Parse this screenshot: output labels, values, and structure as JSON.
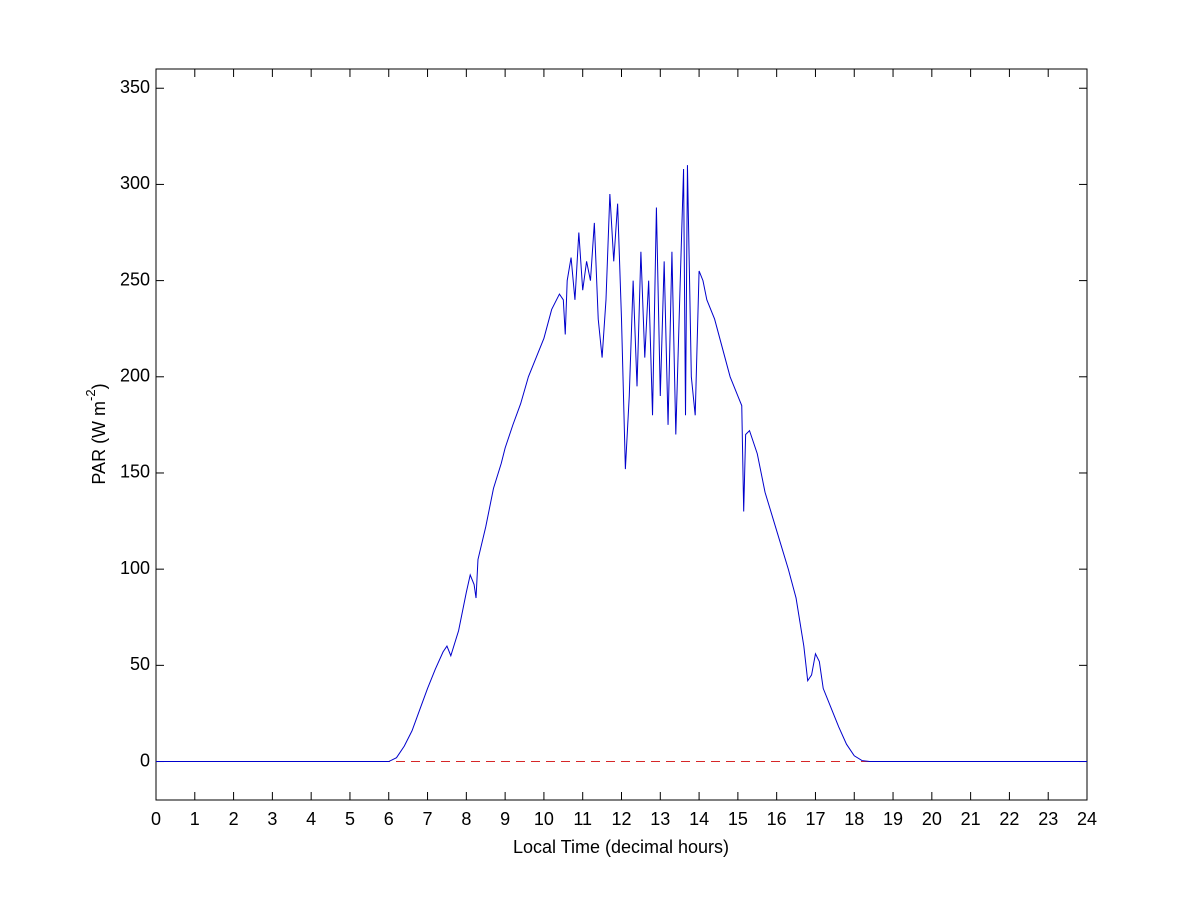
{
  "chart_data": {
    "type": "line",
    "xlabel": "Local Time (decimal hours)",
    "ylabel": [
      "PAR (W m",
      "-2",
      ")"
    ],
    "xlim": [
      0,
      24
    ],
    "ylim": [
      -20,
      360
    ],
    "xticks": [
      0,
      1,
      2,
      3,
      4,
      5,
      6,
      7,
      8,
      9,
      10,
      11,
      12,
      13,
      14,
      15,
      16,
      17,
      18,
      19,
      20,
      21,
      22,
      23,
      24
    ],
    "yticks": [
      0,
      50,
      100,
      150,
      200,
      250,
      300,
      350
    ],
    "grid": false,
    "series": [
      {
        "color": "#0000cc",
        "style": "solid",
        "x": [
          0,
          6,
          6.2,
          6.4,
          6.6,
          6.8,
          7.0,
          7.2,
          7.4,
          7.5,
          7.6,
          7.8,
          8.0,
          8.1,
          8.2,
          8.25,
          8.3,
          8.5,
          8.7,
          8.9,
          9.0,
          9.2,
          9.4,
          9.6,
          9.8,
          10.0,
          10.2,
          10.4,
          10.5,
          10.55,
          10.6,
          10.7,
          10.8,
          10.9,
          11.0,
          11.1,
          11.2,
          11.3,
          11.4,
          11.5,
          11.6,
          11.7,
          11.8,
          11.9,
          12.0,
          12.1,
          12.2,
          12.3,
          12.4,
          12.5,
          12.6,
          12.7,
          12.8,
          12.9,
          13.0,
          13.1,
          13.2,
          13.3,
          13.4,
          13.5,
          13.6,
          13.65,
          13.7,
          13.8,
          13.9,
          14.0,
          14.1,
          14.2,
          14.4,
          14.6,
          14.8,
          15.0,
          15.1,
          15.15,
          15.2,
          15.3,
          15.5,
          15.7,
          16.0,
          16.3,
          16.5,
          16.7,
          16.8,
          16.9,
          17.0,
          17.1,
          17.2,
          17.4,
          17.6,
          17.8,
          18.0,
          18.2,
          18.4,
          24
        ],
        "values": [
          0,
          0,
          2,
          8,
          16,
          27,
          38,
          48,
          57,
          60,
          55,
          68,
          88,
          97,
          92,
          85,
          105,
          122,
          142,
          155,
          163,
          175,
          186,
          200,
          210,
          220,
          235,
          243,
          240,
          222,
          250,
          262,
          240,
          275,
          245,
          260,
          250,
          280,
          230,
          210,
          240,
          295,
          260,
          290,
          230,
          152,
          190,
          250,
          195,
          265,
          210,
          250,
          180,
          288,
          190,
          260,
          175,
          265,
          170,
          240,
          308,
          180,
          310,
          200,
          180,
          255,
          250,
          240,
          230,
          215,
          200,
          190,
          185,
          130,
          170,
          172,
          160,
          140,
          120,
          100,
          85,
          60,
          42,
          45,
          56,
          52,
          38,
          28,
          18,
          9,
          3,
          0.5,
          0,
          0
        ]
      },
      {
        "color": "#d62728",
        "style": "dashed",
        "x": [
          0,
          24
        ],
        "values": [
          0,
          0
        ]
      }
    ]
  }
}
